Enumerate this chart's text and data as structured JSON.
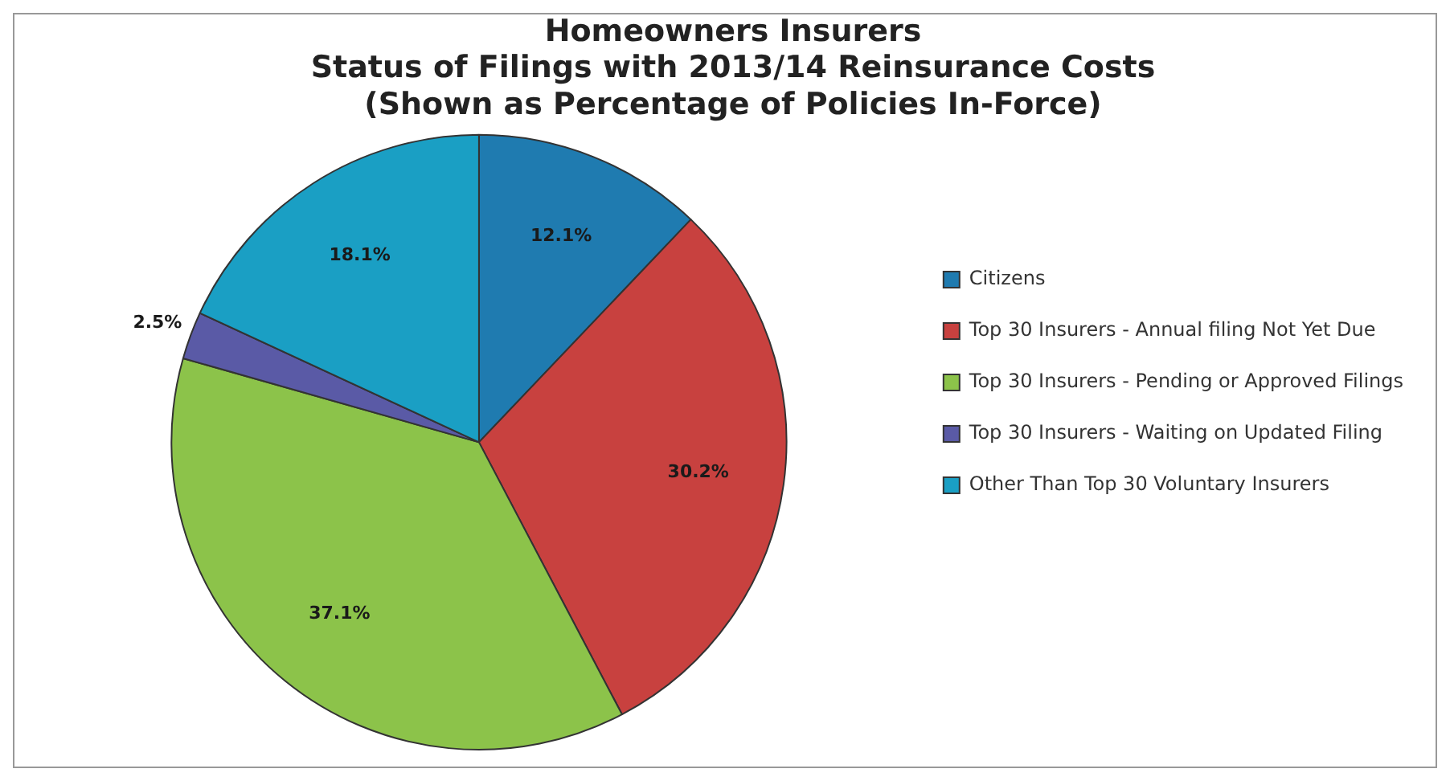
{
  "chart_data": {
    "type": "pie",
    "title": [
      "Homeowners Insurers",
      "Status of Filings with 2013/14 Reinsurance Costs",
      "(Shown as Percentage of Policies In-Force)"
    ],
    "categories": [
      "Citizens",
      "Top 30 Insurers - Annual filing Not Yet Due",
      "Top 30 Insurers - Pending or Approved Filings",
      "Top 30 Insurers - Waiting on Updated Filing",
      "Other Than Top 30 Voluntary Insurers"
    ],
    "values": [
      12.1,
      30.2,
      37.1,
      2.5,
      18.1
    ],
    "colors": [
      "#1f7bb0",
      "#c8413f",
      "#8cc34a",
      "#5a5aa6",
      "#1a9fc4"
    ],
    "value_labels": [
      "12.1%",
      "30.2%",
      "37.1%",
      "2.5%",
      "18.1%"
    ],
    "legend": "right"
  }
}
